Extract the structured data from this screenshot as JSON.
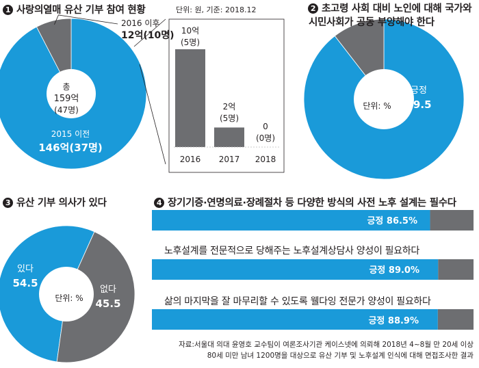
{
  "colors": {
    "blue": "#1a9ad9",
    "gray": "#6d6e71",
    "dark": "#231f20",
    "white": "#ffffff"
  },
  "panel1": {
    "number": "1",
    "title": "사랑의열매 유산 기부 참여 현황",
    "unit_note": "단위: 원, 기준: 2018.12",
    "center_label": [
      "총",
      "159억",
      "(47명)"
    ],
    "slice_before": [
      "2015 이전",
      "146억(37명)"
    ],
    "slice_after": [
      "2016 이후",
      "12억(10명)"
    ]
  },
  "panel2": {
    "number": "2",
    "title": [
      "초고령 사회 대비 노인에 대해 국가와",
      "시민사회가 공동 부양해야 한다"
    ],
    "unit": "단위: %",
    "positive_label": "긍정",
    "positive_value": "89.5"
  },
  "panel3": {
    "number": "3",
    "title": "유산 기부 의사가 있다",
    "unit": "단위: %",
    "yes_label": "있다",
    "yes_value": "54.5",
    "no_label": "없다",
    "no_value": "45.5"
  },
  "panel4": {
    "number": "4",
    "title": "장기기증·연명의료·장례절차 등 다양한 방식의 사전 노후 설계는 필수다",
    "statements": [
      "장기기증·연명의료·장례절차 등 다양한 방식의 사전 노후 설계는 필수다",
      "노후설계를 전문적으로 당해주는 노후설계상담사 양성이 필요하다",
      "삶의 마지막을 잘 마무리할 수 있도록 웰다잉 전문가 양성이 필요하다"
    ],
    "bar_labels": [
      "긍정 86.5%",
      "긍정 89.0%",
      "긍정 88.9%"
    ]
  },
  "source": [
    "자료:서울대 의대 윤영호 교수팀이 여론조사기관 케이스넷에 의뢰해 2018년 4~8월 만 20세 이상",
    "80세 미만 남녀 1200명을 대상으로 유산 기부 및 노후설계 인식에 대해 면접조사한 결과"
  ],
  "chart_data": [
    {
      "type": "pie",
      "title": "사랑의열매 유산 기부 참여 현황",
      "labels": [
        "2015 이전",
        "2016 이후"
      ],
      "values": [
        146,
        12
      ],
      "value_labels": [
        "146억(37명)",
        "12억(10명)"
      ],
      "total_label": "159억 (47명)"
    },
    {
      "type": "bar",
      "categories": [
        "2016",
        "2017",
        "2018"
      ],
      "values": [
        10,
        2,
        0
      ],
      "value_labels": [
        [
          "10억",
          "(5명)"
        ],
        [
          "2억",
          "(5명)"
        ],
        [
          "0",
          "(0명)"
        ]
      ]
    },
    {
      "type": "pie",
      "title": "초고령 사회 대비 노인에 대해 국가와 시민사회가 공동 부양해야 한다",
      "labels": [
        "긍정",
        ""
      ],
      "values": [
        89.5,
        10.5
      ],
      "unit": "%"
    },
    {
      "type": "pie",
      "title": "유산 기부 의사가 있다",
      "labels": [
        "있다",
        "없다"
      ],
      "values": [
        54.5,
        45.5
      ],
      "unit": "%"
    },
    {
      "type": "bar",
      "orientation": "horizontal",
      "categories": [
        "장기기증·연명의료·장례절차 등 다양한 방식의 사전 노후 설계는 필수다",
        "노후설계를 전문적으로 당해주는 노후설계상담사 양성이 필요하다",
        "삶의 마지막을 잘 마무리할 수 있도록 웰다잉 전문가 양성이 필요하다"
      ],
      "series": [
        {
          "name": "긍정",
          "values": [
            86.5,
            89.0,
            88.9
          ]
        }
      ],
      "unit": "%",
      "xlim": [
        0,
        100
      ]
    }
  ]
}
